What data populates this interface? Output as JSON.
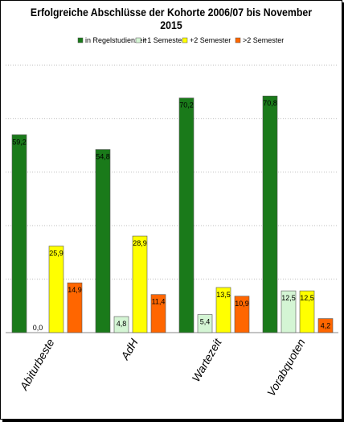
{
  "chart_data": {
    "type": "bar",
    "title": "Erfolgreiche Abschlüsse der Kohorte 2006/07 bis November 2015",
    "categories": [
      "Abiturbeste",
      "AdH",
      "Wartezeit",
      "Vorabquoten"
    ],
    "series": [
      {
        "name": "in Regelstudienzeit",
        "color": "#1a7a1a",
        "values": [
          59.2,
          54.8,
          70.2,
          70.8
        ],
        "labels": [
          "59,2",
          "54,8",
          "70,2",
          "70,8"
        ]
      },
      {
        "name": "+1 Semester",
        "color": "#d4f5d4",
        "values": [
          0.0,
          4.8,
          5.4,
          12.5
        ],
        "labels": [
          "0,0",
          "4,8",
          "5,4",
          "12,5"
        ]
      },
      {
        "name": "+2 Semester",
        "color": "#ffff00",
        "values": [
          25.9,
          28.9,
          13.5,
          12.5
        ],
        "labels": [
          "25,9",
          "28,9",
          "13,5",
          "12,5"
        ]
      },
      {
        "name": ">2 Semester",
        "color": "#ff6600",
        "values": [
          14.9,
          11.4,
          10.9,
          4.2
        ],
        "labels": [
          "14,9",
          "11,4",
          "10,9",
          "4,2"
        ]
      }
    ],
    "ylim": [
      0,
      80
    ],
    "grid": true,
    "legend": "top"
  }
}
